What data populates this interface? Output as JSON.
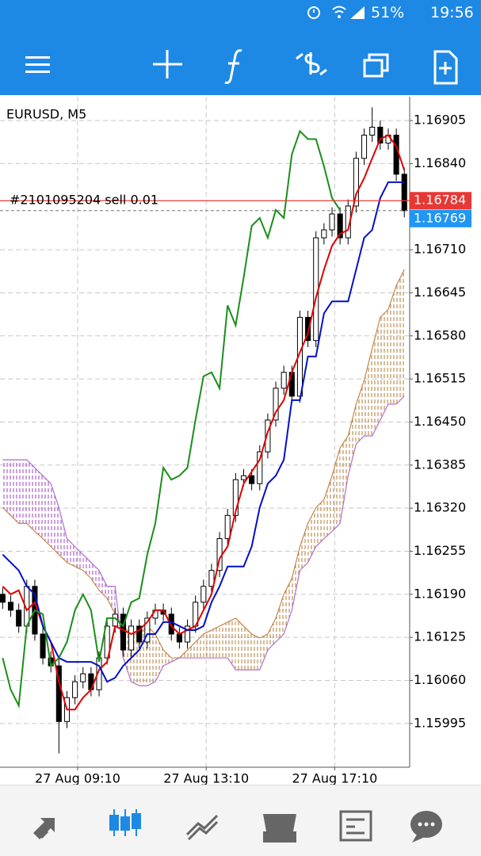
{
  "status_bar": {
    "battery": "51%",
    "time": "19:56"
  },
  "chart_data": {
    "type": "candlestick",
    "title": "EURUSD, M5",
    "x": [
      1,
      4,
      7,
      10,
      13,
      16,
      19,
      22,
      25,
      28,
      31,
      34,
      37,
      40,
      43,
      46,
      49,
      52,
      55,
      58,
      61,
      64,
      67,
      70,
      73,
      76,
      79,
      82,
      85,
      88,
      91,
      94,
      97,
      100,
      103,
      106,
      109,
      112,
      115,
      118,
      121,
      124,
      127,
      130,
      133,
      136,
      139,
      142,
      145,
      148,
      151
    ],
    "open": [
      1.1619,
      1.16178,
      1.16166,
      1.16142,
      1.16202,
      1.1613,
      1.16094,
      1.16082,
      1.15998,
      1.16034,
      1.16058,
      1.1607,
      1.16046,
      1.16094,
      1.16142,
      1.1616,
      1.16106,
      1.16142,
      1.16118,
      1.16154,
      1.16166,
      1.1616,
      1.1613,
      1.16118,
      1.16142,
      1.16178,
      1.16202,
      1.16226,
      1.16274,
      1.16309,
      1.16363,
      1.16369,
      1.16357,
      1.16405,
      1.16453,
      1.16501,
      1.16525,
      1.16489,
      1.16608,
      1.16573,
      1.16728,
      1.1674,
      1.16764,
      1.16728,
      1.16776,
      1.16848,
      1.16883,
      1.16895,
      1.16871,
      1.16883,
      1.16824
    ],
    "high": [
      1.162,
      1.16188,
      1.16176,
      1.16212,
      1.16212,
      1.1614,
      1.16104,
      1.16092,
      1.16044,
      1.16068,
      1.1608,
      1.1608,
      1.16104,
      1.16152,
      1.1617,
      1.1617,
      1.16152,
      1.16152,
      1.16164,
      1.16176,
      1.16176,
      1.1617,
      1.1614,
      1.16152,
      1.16188,
      1.16212,
      1.16236,
      1.16284,
      1.16319,
      1.16373,
      1.16379,
      1.16379,
      1.16415,
      1.16463,
      1.16511,
      1.16535,
      1.16535,
      1.16618,
      1.16618,
      1.16738,
      1.1675,
      1.16774,
      1.16774,
      1.16786,
      1.16858,
      1.16893,
      1.16925,
      1.16905,
      1.16893,
      1.16893,
      1.16834
    ],
    "low": [
      1.16168,
      1.16156,
      1.16132,
      1.16132,
      1.1612,
      1.16084,
      1.16072,
      1.1595,
      1.15988,
      1.16024,
      1.16048,
      1.16036,
      1.16036,
      1.16084,
      1.16132,
      1.16096,
      1.16096,
      1.16108,
      1.16108,
      1.16144,
      1.1615,
      1.1612,
      1.16108,
      1.16108,
      1.16132,
      1.16168,
      1.16192,
      1.16216,
      1.16264,
      1.16299,
      1.16353,
      1.16347,
      1.16347,
      1.16395,
      1.16443,
      1.16491,
      1.16479,
      1.16479,
      1.16563,
      1.16563,
      1.16718,
      1.1673,
      1.16718,
      1.16718,
      1.16766,
      1.16838,
      1.16873,
      1.16861,
      1.16861,
      1.16814,
      1.16759
    ],
    "close": [
      1.16178,
      1.16166,
      1.16142,
      1.16202,
      1.1613,
      1.16094,
      1.16082,
      1.15998,
      1.16034,
      1.16058,
      1.1607,
      1.16046,
      1.16094,
      1.16142,
      1.1616,
      1.16106,
      1.16142,
      1.16118,
      1.16154,
      1.16166,
      1.1616,
      1.1613,
      1.16118,
      1.16142,
      1.16178,
      1.16202,
      1.16226,
      1.16274,
      1.16309,
      1.16363,
      1.16369,
      1.16357,
      1.16405,
      1.16453,
      1.16501,
      1.16525,
      1.16489,
      1.16608,
      1.16573,
      1.16728,
      1.1674,
      1.16764,
      1.16728,
      1.16776,
      1.16848,
      1.16883,
      1.16895,
      1.16871,
      1.16883,
      1.16824,
      1.16769
    ],
    "candle_color": "#000000",
    "series": [
      {
        "color": "#e00000",
        "values": [
          1.16202,
          1.1619,
          1.16196,
          1.16166,
          1.16178,
          1.16142,
          1.16118,
          1.16058,
          1.16016,
          1.16016,
          1.16034,
          1.16046,
          1.16076,
          1.16088,
          1.16142,
          1.16136,
          1.1613,
          1.16136,
          1.16148,
          1.16166,
          1.16166,
          1.16142,
          1.1613,
          1.16136,
          1.16142,
          1.16166,
          1.1619,
          1.16244,
          1.16262,
          1.16315,
          1.16357,
          1.16375,
          1.16393,
          1.16435,
          1.16465,
          1.16483,
          1.16525,
          1.16555,
          1.16584,
          1.16638,
          1.1668,
          1.16716,
          1.16734,
          1.1674,
          1.16794,
          1.16818,
          1.16848,
          1.16877,
          1.16883,
          1.16866,
          1.1683
        ]
      },
      {
        "color": "#0010c8",
        "values": [
          1.1625,
          1.16238,
          1.16226,
          1.16202,
          1.1619,
          1.16142,
          1.16118,
          1.16094,
          1.16088,
          1.16088,
          1.16088,
          1.16088,
          1.16082,
          1.16058,
          1.16064,
          1.16082,
          1.16094,
          1.16106,
          1.1613,
          1.1613,
          1.16148,
          1.16148,
          1.16142,
          1.16136,
          1.16136,
          1.16142,
          1.16178,
          1.16202,
          1.16232,
          1.16232,
          1.16232,
          1.16262,
          1.16321,
          1.16357,
          1.16369,
          1.16393,
          1.16483,
          1.16483,
          1.16549,
          1.16549,
          1.16614,
          1.16632,
          1.16632,
          1.16632,
          1.1668,
          1.16728,
          1.1674,
          1.16788,
          1.16812,
          1.16812,
          1.16812
        ]
      },
      {
        "color": "#1a8f1a",
        "values": [
          1.16094,
          1.16046,
          1.16022,
          1.16142,
          1.16166,
          1.1616,
          1.16082,
          1.16094,
          1.16118,
          1.16166,
          1.1619,
          1.16166,
          1.16088,
          1.16154,
          1.16154,
          1.16142,
          1.16178,
          1.16184,
          1.1625,
          1.16297,
          1.16381,
          1.16363,
          1.16369,
          1.16381,
          1.16453,
          1.16519,
          1.16525,
          1.16501,
          1.16626,
          1.16596,
          1.16668,
          1.16746,
          1.16758,
          1.16728,
          1.1677,
          1.16758,
          1.16854,
          1.16889,
          1.16877,
          1.16877,
          1.16836,
          1.16788,
          1.1677,
          null,
          null,
          null,
          null,
          null,
          null,
          null,
          null
        ]
      },
      {
        "color": "#c8864a",
        "values": [
          1.16321,
          1.16309,
          1.16297,
          1.16297,
          1.16285,
          1.16274,
          1.16262,
          1.1625,
          1.16238,
          1.16232,
          1.16226,
          1.16214,
          1.16196,
          1.16184,
          1.1616,
          1.16142,
          1.1613,
          1.1613,
          1.16142,
          1.1613,
          1.16106,
          1.16094,
          1.16094,
          1.16106,
          1.16118,
          1.1613,
          1.16136,
          1.16142,
          1.16148,
          1.16154,
          1.16142,
          1.1613,
          1.16124,
          1.1613,
          1.16154,
          1.1619,
          1.16214,
          1.16262,
          1.16297,
          1.16321,
          1.16333,
          1.16369,
          1.16411,
          1.16429,
          1.16477,
          1.16513,
          1.16561,
          1.16608,
          1.1662,
          1.16656,
          1.1668
        ]
      },
      {
        "color": "#b070d0",
        "values": [
          1.16393,
          1.16393,
          1.16393,
          1.16393,
          1.16381,
          1.16369,
          1.16357,
          1.16321,
          1.16274,
          1.16262,
          1.1625,
          1.16238,
          1.16226,
          1.16202,
          1.16202,
          1.16094,
          1.16058,
          1.16052,
          1.16052,
          1.16058,
          1.16082,
          1.16088,
          1.16094,
          1.16094,
          1.16094,
          1.16094,
          1.16094,
          1.16094,
          1.16094,
          1.16076,
          1.16076,
          1.16076,
          1.16076,
          1.16106,
          1.16118,
          1.1613,
          1.16166,
          1.16226,
          1.16238,
          1.16262,
          1.16274,
          1.16285,
          1.16297,
          1.16369,
          1.16417,
          1.16429,
          1.16429,
          1.16453,
          1.16477,
          1.16477,
          1.16489
        ]
      }
    ],
    "xlim": [
      0,
      153
    ],
    "xticks": [
      {
        "value": 29,
        "label": "27 Aug 09:10"
      },
      {
        "value": 77,
        "label": "27 Aug 13:10"
      },
      {
        "value": 125,
        "label": "27 Aug 17:10"
      }
    ],
    "ylim": [
      1.15929,
      1.16941
    ],
    "yticks": [
      1.16905,
      {
        "value": 1.1684,
        "label": "1.16840"
      },
      {
        "value": 1.1671,
        "label": "1.16710"
      },
      1.16645,
      {
        "value": 1.1658,
        "label": "1.16580"
      },
      1.16515,
      {
        "value": 1.1645,
        "label": "1.16450"
      },
      1.16385,
      {
        "value": 1.1632,
        "label": "1.16320"
      },
      1.16255,
      {
        "value": 1.1619,
        "label": "1.16190"
      },
      1.16125,
      {
        "value": 1.1606,
        "label": "1.16060"
      },
      1.15995
    ],
    "grid": true,
    "order_line": {
      "label": "#2101095204 sell 0.01",
      "value": 1.16784,
      "color": "#e53935"
    },
    "bid": {
      "value": 1.16769,
      "color": "#2196f3"
    }
  }
}
